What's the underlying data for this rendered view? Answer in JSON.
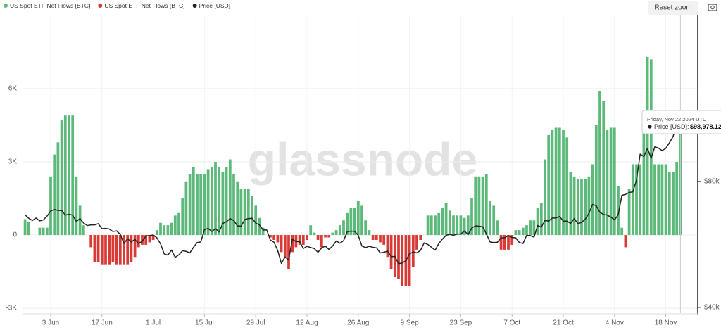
{
  "chart_data": {
    "type": "bar",
    "watermark": "glassnode",
    "reset_button": "Reset zoom",
    "categories": [
      null,
      null,
      null,
      null,
      null,
      null,
      null,
      "3 Jun",
      null,
      null,
      null,
      null,
      null,
      null,
      null,
      null,
      null,
      null,
      null,
      null,
      null,
      "17 Jun",
      null,
      null,
      null,
      null,
      null,
      null,
      null,
      null,
      null,
      null,
      null,
      null,
      null,
      "1 Jul",
      null,
      null,
      null,
      null,
      null,
      null,
      null,
      null,
      null,
      null,
      null,
      null,
      null,
      "15 Jul",
      null,
      null,
      null,
      null,
      null,
      null,
      null,
      null,
      null,
      null,
      null,
      null,
      null,
      "29 Jul",
      null,
      null,
      null,
      null,
      null,
      null,
      null,
      null,
      null,
      null,
      null,
      null,
      null,
      "12 Aug",
      null,
      null,
      null,
      null,
      null,
      null,
      null,
      null,
      null,
      null,
      null,
      null,
      null,
      "26 Aug",
      null,
      null,
      null,
      null,
      null,
      null,
      null,
      null,
      null,
      null,
      null,
      null,
      null,
      "9 Sep",
      null,
      null,
      null,
      null,
      null,
      null,
      null,
      null,
      null,
      null,
      null,
      null,
      null,
      "23 Sep",
      null,
      null,
      null,
      null,
      null,
      null,
      null,
      null,
      null,
      null,
      null,
      null,
      null,
      "7 Oct",
      null,
      null,
      null,
      null,
      null,
      null,
      null,
      null,
      null,
      null,
      null,
      null,
      null,
      "21 Oct",
      null,
      null,
      null,
      null,
      null,
      null,
      null,
      null,
      null,
      null,
      null,
      null,
      null,
      "4 Nov",
      null,
      null,
      null,
      null,
      null,
      null,
      null,
      null,
      null,
      null,
      null,
      null,
      null,
      "18 Nov",
      null,
      null,
      null,
      null
    ],
    "series": [
      {
        "name": "US Spot ETF Net Flows [BTC]",
        "color": "#5cb97a",
        "values": [
          650,
          550,
          0,
          0,
          300,
          300,
          300,
          2400,
          3300,
          3800,
          4700,
          4900,
          4900,
          4900,
          2400,
          1200,
          400,
          0,
          null,
          null,
          null,
          null,
          null,
          null,
          null,
          null,
          null,
          null,
          null,
          null,
          null,
          null,
          null,
          null,
          null,
          null,
          200,
          500,
          400,
          400,
          500,
          800,
          900,
          1500,
          2200,
          2500,
          2800,
          2500,
          2500,
          2500,
          2700,
          2800,
          3000,
          2800,
          2600,
          2800,
          3100,
          2500,
          2200,
          1900,
          1900,
          1900,
          1600,
          1200,
          700,
          300,
          0,
          null,
          null,
          null,
          null,
          null,
          null,
          null,
          null,
          null,
          null,
          null,
          400,
          100,
          null,
          null,
          null,
          null,
          100,
          200,
          400,
          600,
          900,
          1100,
          1100,
          1400,
          1200,
          600,
          200,
          null,
          null,
          null,
          null,
          null,
          null,
          null,
          null,
          null,
          null,
          null,
          null,
          null,
          null,
          0,
          800,
          800,
          800,
          900,
          1100,
          1300,
          1000,
          800,
          800,
          800,
          700,
          800,
          1500,
          2400,
          2400,
          2400,
          2500,
          1400,
          1200,
          600,
          null,
          null,
          null,
          null,
          200,
          200,
          300,
          400,
          600,
          600,
          1100,
          1300,
          3100,
          4100,
          4300,
          4400,
          4400,
          4300,
          4000,
          2600,
          2400,
          2300,
          2300,
          2300,
          2400,
          2900,
          4500,
          5900,
          5500,
          4300,
          4400,
          4400,
          2000,
          300,
          null,
          1900,
          2900,
          2900,
          2900,
          4300,
          7300,
          7200,
          2900,
          2900,
          2900,
          2900,
          2600,
          2600,
          3000,
          4500
        ]
      },
      {
        "name": "US Spot ETF Net Flows [BTC]",
        "color": "#d83b36",
        "values": [
          null,
          null,
          null,
          null,
          null,
          null,
          null,
          null,
          null,
          null,
          null,
          null,
          null,
          null,
          null,
          null,
          null,
          null,
          -500,
          -1100,
          -1100,
          -1200,
          -1200,
          -1200,
          -1100,
          -1200,
          -1200,
          -1200,
          -1200,
          -1100,
          -900,
          -500,
          -400,
          -400,
          -300,
          -200,
          null,
          null,
          null,
          null,
          null,
          null,
          null,
          null,
          null,
          null,
          null,
          null,
          null,
          null,
          null,
          null,
          null,
          null,
          null,
          null,
          null,
          null,
          null,
          null,
          null,
          null,
          null,
          null,
          null,
          null,
          null,
          -100,
          -200,
          -300,
          -700,
          -900,
          -1400,
          -700,
          -500,
          -400,
          -400,
          -200,
          null,
          null,
          -200,
          -500,
          -100,
          -100,
          null,
          null,
          null,
          null,
          null,
          null,
          null,
          null,
          null,
          null,
          null,
          -200,
          -200,
          -300,
          -400,
          -900,
          -1400,
          -1700,
          -1800,
          -2100,
          -2100,
          -2100,
          -1300,
          -600,
          -200,
          null,
          null,
          null,
          null,
          null,
          null,
          null,
          null,
          null,
          null,
          null,
          null,
          null,
          null,
          null,
          null,
          null,
          null,
          null,
          null,
          null,
          -600,
          -600,
          -600,
          -400,
          null,
          null,
          null,
          null,
          null,
          null,
          null,
          null,
          null,
          null,
          null,
          null,
          null,
          null,
          null,
          null,
          null,
          null,
          null,
          null,
          null,
          null,
          null,
          null,
          null,
          null,
          null,
          null,
          null,
          null,
          -500,
          null,
          null,
          null,
          null,
          null,
          null,
          null,
          null,
          null,
          null,
          null,
          null,
          null,
          null,
          null
        ]
      },
      {
        "name": "Price [USD]",
        "color": "#222222",
        "axis": "y2",
        "values": [
          69400,
          68300,
          67600,
          68400,
          67500,
          67800,
          69000,
          70600,
          71100,
          70800,
          70800,
          69300,
          69600,
          69300,
          67300,
          68200,
          66800,
          66000,
          66200,
          66200,
          66600,
          65000,
          65100,
          64900,
          64100,
          64300,
          63200,
          60300,
          61800,
          60800,
          61600,
          60300,
          61000,
          62700,
          62800,
          63000,
          62100,
          60200,
          57000,
          56600,
          58200,
          55900,
          56700,
          58000,
          57800,
          57300,
          59100,
          60600,
          60800,
          64700,
          65100,
          64100,
          65000,
          64000,
          66700,
          67200,
          68200,
          67600,
          65900,
          65800,
          67900,
          68200,
          68300,
          66800,
          66200,
          64600,
          64600,
          61400,
          60700,
          58100,
          54000,
          56000,
          55100,
          61700,
          60900,
          60900,
          58700,
          59400,
          59000,
          58700,
          57500,
          58900,
          59500,
          58400,
          59500,
          61100,
          60400,
          61200,
          64100,
          64200,
          64200,
          62900,
          59500,
          59000,
          59400,
          59100,
          58900,
          57300,
          57500,
          57900,
          56100,
          56200,
          53900,
          54100,
          54800,
          57000,
          57600,
          57300,
          58100,
          60500,
          60000,
          59100,
          58200,
          60300,
          61700,
          62900,
          63200,
          62900,
          63300,
          63300,
          64300,
          63100,
          65200,
          65900,
          65800,
          65600,
          63300,
          60800,
          60600,
          60700,
          62100,
          62100,
          62800,
          62200,
          62100,
          60600,
          60300,
          62900,
          62800,
          62300,
          66000,
          65500,
          67600,
          67400,
          68400,
          68400,
          68900,
          67400,
          67400,
          66700,
          68200,
          66600,
          67000,
          68000,
          69900,
          72700,
          72300,
          70200,
          69500,
          69300,
          68700,
          67800,
          69400,
          75600,
          75900,
          76500,
          76700,
          80500,
          88700,
          87900,
          90500,
          87400,
          91000,
          90600,
          89800,
          90500,
          92300,
          94300,
          98400,
          98978.12
        ]
      }
    ],
    "ylim": [
      -3200,
      9000
    ],
    "yticks": [
      {
        "value": -3000,
        "label": "-3K"
      },
      0,
      {
        "value": 3000,
        "label": "3K"
      },
      {
        "value": 6000,
        "label": "6K"
      }
    ],
    "y2lim": [
      38200,
      132700
    ],
    "y2ticks": [
      {
        "value": 40000,
        "label": "$40k"
      },
      {
        "value": 80000,
        "label": "$80k"
      }
    ],
    "grid": true,
    "legend": "top-left",
    "tooltip": {
      "date": "Friday, Nov 22 2024 UTC",
      "series_label": "Price [USD]:",
      "value_label": "$98,978.12"
    }
  }
}
